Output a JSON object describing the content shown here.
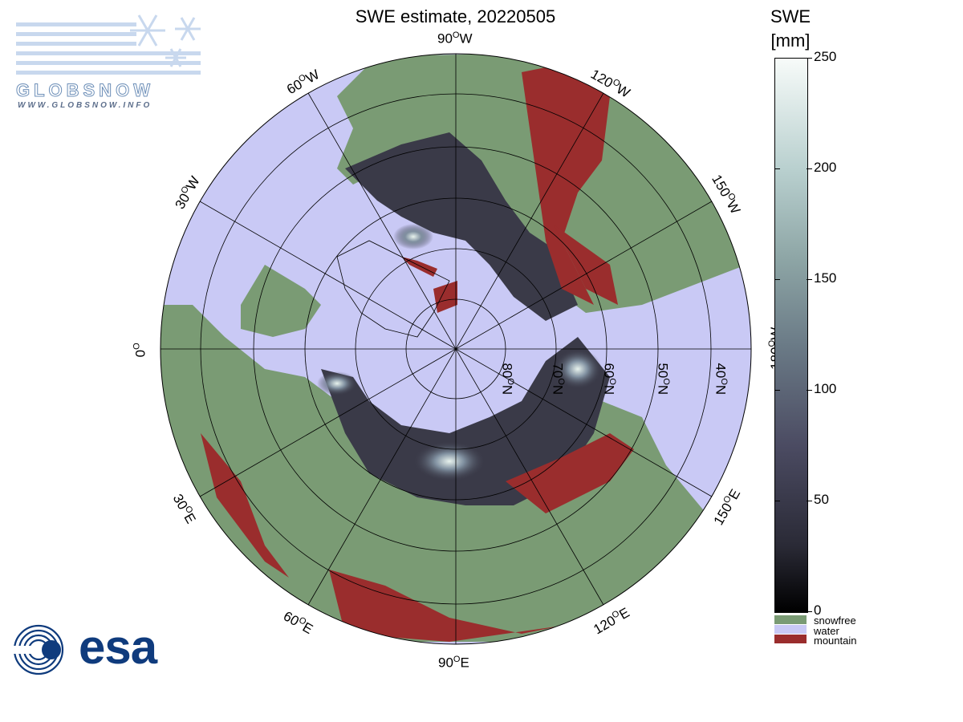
{
  "title": "SWE estimate, 20220505",
  "logo": {
    "name": "GLOBSNOW",
    "url": "WWW.GLOBSNOW.INFO"
  },
  "agency_logo": "esa",
  "meridian_labels": {
    "n90w": "90",
    "n60w": "60",
    "n120w": "120",
    "n30w": "30",
    "n150w": "150",
    "n0": "0",
    "n180w": "180",
    "n30e": "30",
    "n150e": "150",
    "n60e": "60",
    "n120e": "120",
    "n90e": "90",
    "west_suffix": "W",
    "east_suffix": "E",
    "degree": "O"
  },
  "parallel_labels": {
    "p80": "80",
    "p70": "70",
    "p60": "60",
    "p50": "50",
    "p40": "40",
    "suffix": "N"
  },
  "colorbar": {
    "title_line1": "SWE",
    "title_line2": "[mm]",
    "ticks": [
      "250",
      "200",
      "150",
      "100",
      "50",
      "0"
    ],
    "categories": [
      {
        "label": "snowfree",
        "color": "#7a9b74"
      },
      {
        "label": "water",
        "color": "#c9c9f5"
      },
      {
        "label": "mountain",
        "color": "#9a2d2d"
      }
    ]
  },
  "colors": {
    "water": "#c9c9f5",
    "land_snowfree": "#7a9b74",
    "mountain": "#9a2d2d",
    "snow_dark": "#3a3a48",
    "esa_blue": "#0f3b7d"
  }
}
